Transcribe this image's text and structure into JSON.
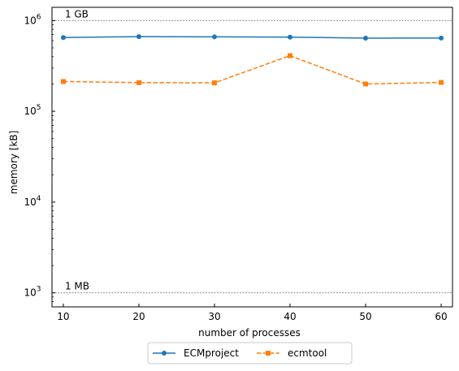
{
  "chart_data": {
    "type": "line",
    "xlabel": "number of processes",
    "ylabel": "memory [kB]",
    "yscale": "log",
    "xlim": [
      8.5,
      61.5
    ],
    "ylim": [
      700,
      1400000
    ],
    "grid": false,
    "legend_placement": "bottom-center, below plot",
    "x": [
      10,
      20,
      30,
      40,
      50,
      60
    ],
    "x_ticks": [
      {
        "value": 10,
        "label": "10"
      },
      {
        "value": 20,
        "label": "20"
      },
      {
        "value": 30,
        "label": "30"
      },
      {
        "value": 40,
        "label": "40"
      },
      {
        "value": 50,
        "label": "50"
      },
      {
        "value": 60,
        "label": "60"
      }
    ],
    "y_ticks": [
      {
        "value": 1000,
        "base": "10",
        "exp": "3"
      },
      {
        "value": 10000,
        "base": "10",
        "exp": "4"
      },
      {
        "value": 100000,
        "base": "10",
        "exp": "5"
      },
      {
        "value": 1000000,
        "base": "10",
        "exp": "6"
      }
    ],
    "reference_lines": [
      {
        "value": 1000000,
        "label": "1 GB"
      },
      {
        "value": 1000,
        "label": "1 MB"
      }
    ],
    "series": [
      {
        "name": "ECMproject",
        "color": "#1f77b4",
        "marker": "circle",
        "linestyle": "solid",
        "values": [
          650000,
          665000,
          662000,
          657000,
          640000,
          642000
        ]
      },
      {
        "name": "ecmtool",
        "color": "#ff7f0e",
        "marker": "square",
        "linestyle": "dashed",
        "values": [
          213000,
          207000,
          206000,
          410000,
          200000,
          208000
        ]
      }
    ]
  }
}
